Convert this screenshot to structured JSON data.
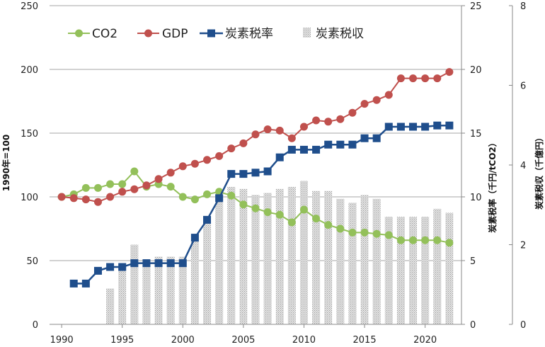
{
  "chart_data": {
    "type": "combo",
    "x": [
      1990,
      1991,
      1992,
      1993,
      1994,
      1995,
      1996,
      1997,
      1998,
      1999,
      2000,
      2001,
      2002,
      2003,
      2004,
      2005,
      2006,
      2007,
      2008,
      2009,
      2010,
      2011,
      2012,
      2013,
      2014,
      2015,
      2016,
      2017,
      2018,
      2019,
      2020,
      2021,
      2022
    ],
    "x_ticks": [
      "1990",
      "1995",
      "2000",
      "2005",
      "2010",
      "2015",
      "2020"
    ],
    "x_tick_values": [
      1990,
      1995,
      2000,
      2005,
      2010,
      2015,
      2020
    ],
    "left_axis": {
      "label": "1990年=100",
      "range": [
        0,
        250
      ],
      "ticks": [
        "0",
        "50",
        "100",
        "150",
        "200",
        "250"
      ]
    },
    "right_axis_1": {
      "label": "炭素税率（千円/tCO2）",
      "range": [
        0,
        25
      ],
      "ticks": [
        "0",
        "5",
        "10",
        "15",
        "20",
        "25"
      ]
    },
    "right_axis_2": {
      "label": "炭素税収（千億円）",
      "range": [
        0,
        8
      ],
      "ticks": [
        "0",
        "2",
        "4",
        "6",
        "8"
      ]
    },
    "legend": [
      "CO2",
      "GDP",
      "炭素税率",
      "炭素税収"
    ],
    "series": [
      {
        "name": "CO2",
        "type": "line",
        "axis": "left",
        "color": "#93c05a",
        "x": [
          1990,
          1991,
          1992,
          1993,
          1994,
          1995,
          1996,
          1997,
          1998,
          1999,
          2000,
          2001,
          2002,
          2003,
          2004,
          2005,
          2006,
          2007,
          2008,
          2009,
          2010,
          2011,
          2012,
          2013,
          2014,
          2015,
          2016,
          2017,
          2018,
          2019,
          2020,
          2021,
          2022
        ],
        "values": [
          100,
          102,
          107,
          107,
          110,
          110,
          120,
          108,
          110,
          108,
          100,
          98,
          102,
          104,
          101,
          94,
          91,
          88,
          86,
          80,
          90,
          83,
          78,
          75,
          72,
          72,
          71,
          70,
          66,
          66,
          66,
          66,
          64
        ]
      },
      {
        "name": "GDP",
        "type": "line",
        "axis": "left",
        "color": "#c0504d",
        "x": [
          1990,
          1991,
          1992,
          1993,
          1994,
          1995,
          1996,
          1997,
          1998,
          1999,
          2000,
          2001,
          2002,
          2003,
          2004,
          2005,
          2006,
          2007,
          2008,
          2009,
          2010,
          2011,
          2012,
          2013,
          2014,
          2015,
          2016,
          2017,
          2018,
          2019,
          2020,
          2021,
          2022
        ],
        "values": [
          100,
          99,
          98,
          96,
          100,
          104,
          106,
          109,
          114,
          119,
          124,
          126,
          129,
          132,
          138,
          142,
          149,
          153,
          152,
          146,
          155,
          160,
          159,
          161,
          166,
          173,
          176,
          180,
          193,
          193,
          193,
          193,
          198
        ]
      },
      {
        "name": "炭素税率",
        "type": "line",
        "axis": "right_1",
        "color": "#1f4e8c",
        "x": [
          1991,
          1992,
          1993,
          1994,
          1995,
          1996,
          1997,
          1998,
          1999,
          2000,
          2001,
          2002,
          2003,
          2004,
          2005,
          2006,
          2007,
          2008,
          2009,
          2010,
          2011,
          2012,
          2013,
          2014,
          2015,
          2016,
          2017,
          2018,
          2019,
          2020,
          2021,
          2022
        ],
        "values": [
          3.2,
          3.2,
          4.2,
          4.5,
          4.5,
          4.8,
          4.8,
          4.8,
          4.8,
          4.8,
          6.8,
          8.2,
          9.9,
          11.8,
          11.8,
          11.9,
          12.0,
          13.1,
          13.7,
          13.7,
          13.7,
          14.1,
          14.1,
          14.1,
          14.6,
          14.6,
          15.5,
          15.5,
          15.5,
          15.5,
          15.6,
          15.6
        ]
      },
      {
        "name": "炭素税収",
        "type": "bar",
        "axis": "right_2",
        "color": "#c8c8c8",
        "x": [
          1994,
          1995,
          1996,
          1997,
          1998,
          1999,
          2000,
          2001,
          2002,
          2003,
          2004,
          2005,
          2006,
          2007,
          2008,
          2009,
          2010,
          2011,
          2012,
          2013,
          2014,
          2015,
          2016,
          2017,
          2018,
          2019,
          2020,
          2021,
          2022
        ],
        "values": [
          0.9,
          1.5,
          2.0,
          1.5,
          1.7,
          1.7,
          1.7,
          2.1,
          2.7,
          3.3,
          3.45,
          3.4,
          3.25,
          3.3,
          3.4,
          3.45,
          3.6,
          3.35,
          3.35,
          3.15,
          3.05,
          3.25,
          3.15,
          2.7,
          2.7,
          2.7,
          2.7,
          2.9,
          2.8
        ]
      }
    ],
    "gridlines": true,
    "legend_position": "top-left"
  }
}
